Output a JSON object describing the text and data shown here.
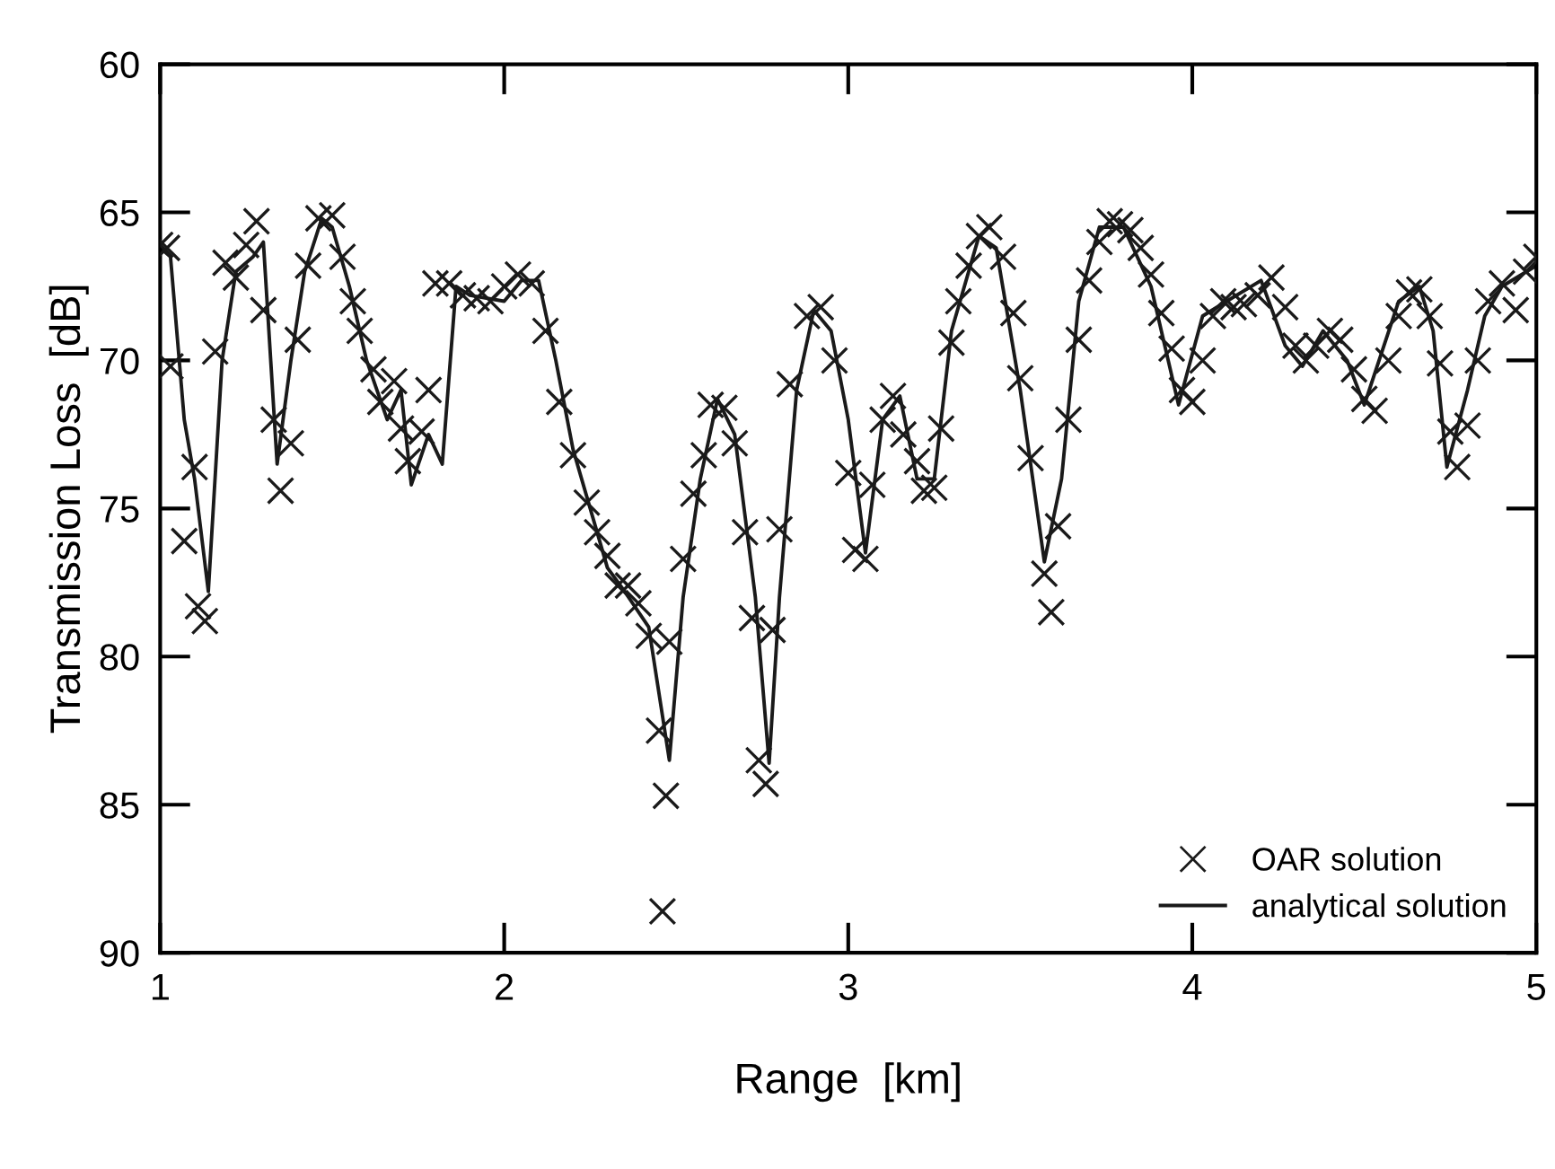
{
  "chart_data": {
    "type": "line",
    "xlabel": "Range  [km]",
    "ylabel": "Transmission Loss  [dB]",
    "xlim": [
      1,
      5
    ],
    "ylim": [
      90,
      60
    ],
    "xticks": [
      1,
      2,
      3,
      4,
      5
    ],
    "yticks": [
      60,
      65,
      70,
      75,
      80,
      85,
      90
    ],
    "grid": false,
    "legend": "bottom right",
    "series": [
      {
        "name": "OAR solution",
        "type": "scatter",
        "marker": "cross",
        "color": "#1a1a1a",
        "x": [
          1.0,
          1.02,
          1.03,
          1.07,
          1.1,
          1.11,
          1.13,
          1.16,
          1.19,
          1.22,
          1.25,
          1.28,
          1.3,
          1.33,
          1.35,
          1.38,
          1.4,
          1.43,
          1.46,
          1.5,
          1.53,
          1.56,
          1.58,
          1.62,
          1.64,
          1.68,
          1.7,
          1.72,
          1.76,
          1.78,
          1.8,
          1.84,
          1.88,
          1.92,
          1.96,
          2.0,
          2.04,
          2.08,
          2.12,
          2.16,
          2.2,
          2.24,
          2.27,
          2.3,
          2.33,
          2.36,
          2.39,
          2.42,
          2.45,
          2.46,
          2.47,
          2.48,
          2.52,
          2.55,
          2.58,
          2.6,
          2.64,
          2.67,
          2.7,
          2.72,
          2.74,
          2.76,
          2.78,
          2.8,
          2.83,
          2.88,
          2.92,
          2.96,
          3.0,
          3.02,
          3.05,
          3.07,
          3.1,
          3.13,
          3.16,
          3.2,
          3.22,
          3.25,
          3.27,
          3.3,
          3.32,
          3.35,
          3.38,
          3.41,
          3.45,
          3.48,
          3.5,
          3.53,
          3.57,
          3.59,
          3.61,
          3.64,
          3.67,
          3.7,
          3.73,
          3.76,
          3.79,
          3.82,
          3.85,
          3.88,
          3.91,
          3.94,
          3.97,
          4.0,
          4.03,
          4.06,
          4.09,
          4.12,
          4.15,
          4.19,
          4.23,
          4.27,
          4.3,
          4.33,
          4.36,
          4.4,
          4.43,
          4.47,
          4.5,
          4.53,
          4.57,
          4.6,
          4.63,
          4.66,
          4.69,
          4.72,
          4.75,
          4.77,
          4.8,
          4.83,
          4.86,
          4.9,
          4.94,
          4.97,
          5.0
        ],
        "values": [
          66.1,
          66.2,
          70.2,
          76.1,
          73.6,
          78.3,
          78.8,
          69.7,
          66.7,
          67.2,
          66.1,
          65.3,
          68.3,
          72.0,
          74.4,
          72.8,
          69.3,
          66.8,
          65.2,
          65.1,
          66.5,
          68.0,
          69.0,
          70.3,
          71.4,
          70.7,
          72.3,
          73.4,
          72.4,
          71.0,
          67.4,
          67.4,
          67.8,
          67.9,
          68.0,
          67.5,
          67.1,
          67.4,
          69.0,
          71.4,
          73.2,
          74.8,
          75.8,
          76.6,
          77.6,
          77.6,
          78.2,
          79.3,
          82.5,
          88.6,
          84.7,
          79.5,
          76.7,
          74.5,
          73.2,
          71.5,
          71.6,
          72.8,
          75.8,
          78.7,
          83.5,
          84.3,
          79.1,
          75.7,
          70.8,
          68.5,
          68.2,
          70.0,
          73.8,
          76.4,
          76.7,
          74.2,
          72.0,
          71.2,
          72.5,
          73.4,
          74.4,
          74.3,
          72.3,
          69.4,
          68.0,
          66.8,
          65.8,
          65.5,
          66.5,
          68.4,
          70.6,
          73.3,
          77.2,
          78.5,
          75.6,
          72.0,
          69.3,
          67.3,
          66.0,
          65.3,
          65.4,
          65.6,
          66.2,
          67.1,
          68.4,
          69.6,
          71.0,
          71.4,
          70.0,
          68.5,
          68.0,
          68.2,
          68.1,
          67.8,
          67.2,
          68.2,
          69.5,
          70.0,
          69.5,
          69.0,
          69.3,
          70.3,
          71.3,
          71.7,
          70.0,
          68.5,
          67.7,
          67.6,
          68.5,
          70.1,
          72.4,
          73.6,
          72.2,
          70.0,
          68.0,
          67.4,
          68.3,
          67.0,
          66.5
        ]
      },
      {
        "name": "analytical solution",
        "type": "line",
        "marker": "none",
        "line_style": "solid",
        "color": "#1a1a1a",
        "x": [
          1.0,
          1.03,
          1.07,
          1.1,
          1.14,
          1.18,
          1.22,
          1.27,
          1.3,
          1.34,
          1.38,
          1.42,
          1.47,
          1.5,
          1.55,
          1.6,
          1.66,
          1.7,
          1.73,
          1.78,
          1.82,
          1.86,
          1.9,
          2.0,
          2.05,
          2.1,
          2.15,
          2.2,
          2.3,
          2.35,
          2.42,
          2.48,
          2.52,
          2.57,
          2.62,
          2.67,
          2.73,
          2.77,
          2.8,
          2.85,
          2.9,
          2.95,
          3.0,
          3.05,
          3.1,
          3.15,
          3.2,
          3.25,
          3.3,
          3.38,
          3.43,
          3.5,
          3.57,
          3.62,
          3.67,
          3.73,
          3.8,
          3.88,
          3.96,
          4.03,
          4.1,
          4.2,
          4.27,
          4.32,
          4.38,
          4.45,
          4.5,
          4.6,
          4.66,
          4.7,
          4.74,
          4.8,
          4.85,
          4.9,
          5.0
        ],
        "values": [
          66.2,
          66.5,
          72.0,
          74.0,
          77.8,
          70.0,
          67.0,
          66.5,
          66.0,
          73.5,
          70.0,
          67.0,
          65.2,
          65.5,
          67.5,
          70.0,
          72.0,
          71.0,
          74.2,
          72.5,
          73.5,
          67.5,
          67.8,
          68.0,
          67.3,
          67.3,
          70.0,
          73.0,
          77.0,
          77.8,
          79.0,
          83.5,
          78.0,
          74.0,
          71.3,
          72.5,
          78.0,
          83.6,
          78.0,
          71.0,
          68.3,
          69.0,
          72.0,
          76.5,
          72.0,
          71.2,
          74.0,
          74.0,
          69.0,
          65.8,
          66.2,
          71.0,
          76.8,
          74.0,
          68.0,
          65.5,
          65.5,
          67.5,
          71.5,
          68.5,
          68.0,
          67.3,
          69.5,
          70.2,
          69.0,
          70.0,
          71.5,
          68.0,
          67.5,
          69.0,
          73.6,
          71.0,
          68.5,
          67.5,
          66.8
        ]
      }
    ]
  }
}
